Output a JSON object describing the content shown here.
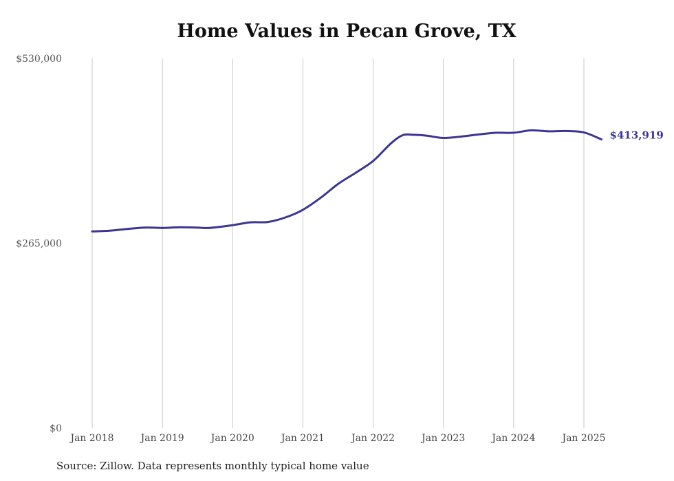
{
  "chart_data": {
    "type": "line",
    "title": "Home Values in Pecan Grove, TX",
    "source": "Source: Zillow. Data represents monthly typical home value",
    "ylim": [
      0,
      530000
    ],
    "yticks": [
      {
        "value": 0,
        "label": "$0"
      },
      {
        "value": 265000,
        "label": "$265,000"
      },
      {
        "value": 530000,
        "label": "$530,000"
      }
    ],
    "xticks": [
      {
        "value": 2018.0,
        "label": "Jan 2018"
      },
      {
        "value": 2019.0,
        "label": "Jan 2019"
      },
      {
        "value": 2020.0,
        "label": "Jan 2020"
      },
      {
        "value": 2021.0,
        "label": "Jan 2021"
      },
      {
        "value": 2022.0,
        "label": "Jan 2022"
      },
      {
        "value": 2023.0,
        "label": "Jan 2023"
      },
      {
        "value": 2024.0,
        "label": "Jan 2024"
      },
      {
        "value": 2025.0,
        "label": "Jan 2025"
      }
    ],
    "grid": "vertical",
    "line_color": "#3b3593",
    "end_label": "$413,919",
    "series": [
      {
        "x": [
          2018.0,
          2018.25,
          2018.5,
          2018.75,
          2019.0,
          2019.25,
          2019.5,
          2019.67,
          2020.0,
          2020.25,
          2020.5,
          2020.75,
          2021.0,
          2021.25,
          2021.5,
          2021.75,
          2022.0,
          2022.25,
          2022.42,
          2022.58,
          2022.75,
          2023.0,
          2023.25,
          2023.5,
          2023.75,
          2024.0,
          2024.25,
          2024.5,
          2024.75,
          2025.0,
          2025.25
        ],
        "y": [
          282000,
          283000,
          285500,
          287500,
          287000,
          288000,
          287500,
          287000,
          291000,
          295000,
          295500,
          302000,
          313000,
          330000,
          350000,
          366000,
          383000,
          408000,
          420000,
          420500,
          419500,
          416000,
          418000,
          421000,
          423500,
          423500,
          427000,
          425500,
          426000,
          424000,
          413919
        ]
      }
    ]
  }
}
